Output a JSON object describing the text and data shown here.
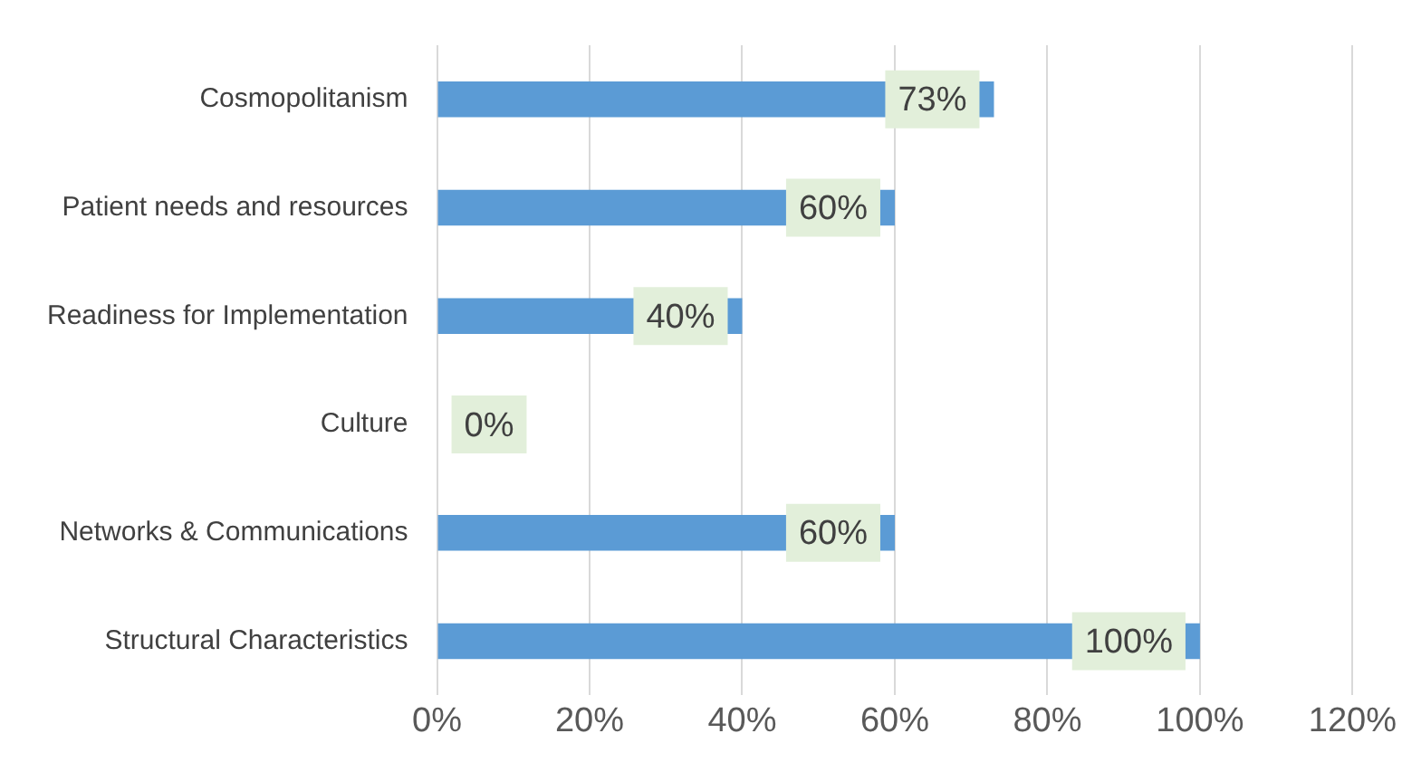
{
  "chart_data": {
    "type": "bar",
    "orientation": "horizontal",
    "categories": [
      "Cosmopolitanism",
      "Patient needs and resources",
      "Readiness for Implementation",
      "Culture",
      "Networks & Communications",
      "Structural Characteristics"
    ],
    "values": [
      73,
      60,
      40,
      0,
      60,
      100
    ],
    "value_labels": [
      "73%",
      "60%",
      "40%",
      "0%",
      "60%",
      "100%"
    ],
    "color": "#5b9bd5",
    "xlim": [
      0,
      120
    ],
    "xticks": [
      {
        "value": 0,
        "label": "0%"
      },
      {
        "value": 20,
        "label": "20%"
      },
      {
        "value": 40,
        "label": "40%"
      },
      {
        "value": 60,
        "label": "60%"
      },
      {
        "value": 80,
        "label": "80%"
      },
      {
        "value": 100,
        "label": "100%"
      },
      {
        "value": 120,
        "label": "120%"
      }
    ],
    "grid": "x",
    "legend": false
  }
}
